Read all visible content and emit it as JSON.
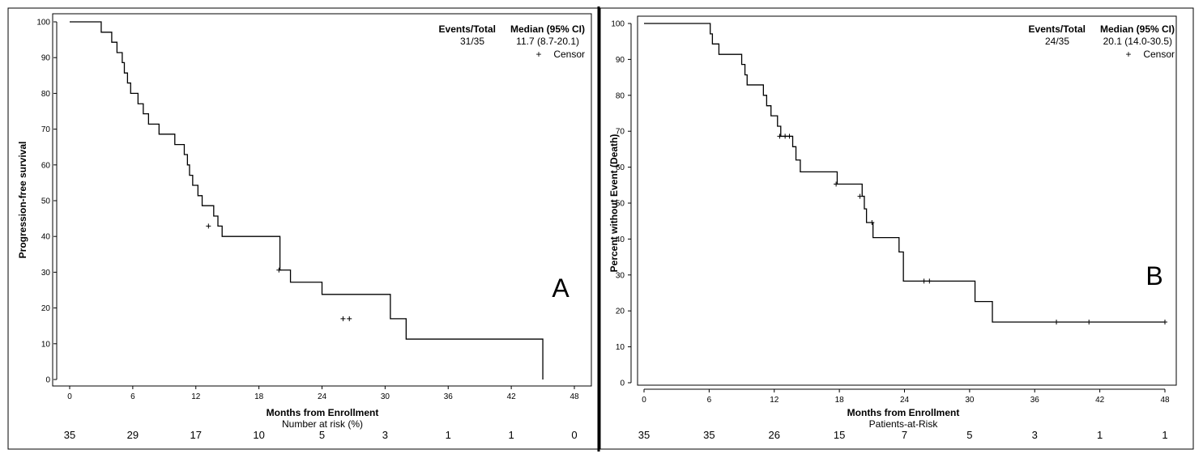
{
  "chart_data": [
    {
      "type": "line",
      "panel_label": "A",
      "ylabel": "Progression-free survival",
      "xlabel": "Months from Enrollment",
      "risk_label": "Number at risk (%)",
      "xlim": [
        0,
        48
      ],
      "ylim": [
        0,
        100
      ],
      "xticks": [
        "0",
        "6",
        "12",
        "18",
        "24",
        "30",
        "36",
        "42",
        "48"
      ],
      "yticks": [
        "0",
        "10",
        "20",
        "30",
        "40",
        "50",
        "60",
        "70",
        "80",
        "90",
        "100"
      ],
      "legend": {
        "events_header": "Events/Total",
        "median_header": "Median (95% CI)",
        "events_value": "31/35",
        "median_value": "11.7 (8.7-20.1)",
        "censor_symbol": "+",
        "censor_label": "Censor"
      },
      "risk_values": [
        "35",
        "29",
        "17",
        "10",
        "5",
        "3",
        "1",
        "1",
        "0"
      ],
      "x": [
        0,
        3.0,
        4.0,
        4.5,
        5.0,
        5.2,
        5.5,
        5.8,
        6.5,
        7.0,
        7.5,
        8.5,
        10.0,
        10.9,
        11.2,
        11.4,
        11.7,
        12.2,
        12.6,
        13.7,
        14.1,
        14.5,
        20.0,
        21.0,
        24.0,
        30.5,
        32.0,
        45.0
      ],
      "y": [
        100,
        97.1,
        94.3,
        91.4,
        88.6,
        85.7,
        82.9,
        80.0,
        77.1,
        74.3,
        71.4,
        68.6,
        65.7,
        62.9,
        60.0,
        57.1,
        54.3,
        51.4,
        48.6,
        45.7,
        42.9,
        40.0,
        30.6,
        27.2,
        23.8,
        17.0,
        11.3,
        5.7
      ],
      "end": [
        45.0,
        0
      ],
      "censors": [
        [
          13.2,
          42.9
        ],
        [
          19.9,
          30.6
        ],
        [
          26.0,
          17.0
        ],
        [
          26.6,
          17.0
        ]
      ]
    },
    {
      "type": "line",
      "panel_label": "B",
      "ylabel": "Percent without Event (Death)",
      "xlabel": "Months from Enrollment",
      "risk_label": "Patients-at-Risk",
      "xlim": [
        0,
        48
      ],
      "ylim": [
        0,
        100
      ],
      "xticks": [
        "0",
        "6",
        "12",
        "18",
        "24",
        "30",
        "36",
        "42",
        "48"
      ],
      "yticks": [
        "0",
        "10",
        "20",
        "30",
        "40",
        "50",
        "60",
        "70",
        "80",
        "90",
        "100"
      ],
      "legend": {
        "events_header": "Events/Total",
        "median_header": "Median (95% CI)",
        "events_value": "24/35",
        "median_value": "20.1 (14.0-30.5)",
        "censor_symbol": "+",
        "censor_label": "Censor"
      },
      "risk_values": [
        "35",
        "35",
        "26",
        "15",
        "7",
        "5",
        "3",
        "1",
        "1"
      ],
      "x": [
        0,
        6.1,
        6.3,
        6.9,
        9.0,
        9.3,
        9.5,
        11.0,
        11.3,
        11.7,
        12.3,
        12.6,
        13.7,
        14.0,
        14.4,
        17.8,
        20.1,
        20.3,
        20.5,
        21.1,
        23.5,
        23.9,
        30.5,
        32.1
      ],
      "y": [
        100,
        97.1,
        94.3,
        91.4,
        88.6,
        85.7,
        82.9,
        80.0,
        77.1,
        74.3,
        71.4,
        68.6,
        65.7,
        62.0,
        58.7,
        55.3,
        51.9,
        48.4,
        44.6,
        40.4,
        36.4,
        28.3,
        22.6,
        16.9
      ],
      "end": [
        48.0,
        16.9
      ],
      "censors": [
        [
          12.5,
          68.6
        ],
        [
          13.0,
          68.6
        ],
        [
          13.4,
          68.6
        ],
        [
          17.7,
          55.3
        ],
        [
          19.9,
          51.9
        ],
        [
          21.0,
          44.6
        ],
        [
          25.8,
          28.3
        ],
        [
          26.3,
          28.3
        ],
        [
          38.0,
          16.9
        ],
        [
          41.0,
          16.9
        ],
        [
          48.0,
          16.9
        ]
      ]
    }
  ]
}
